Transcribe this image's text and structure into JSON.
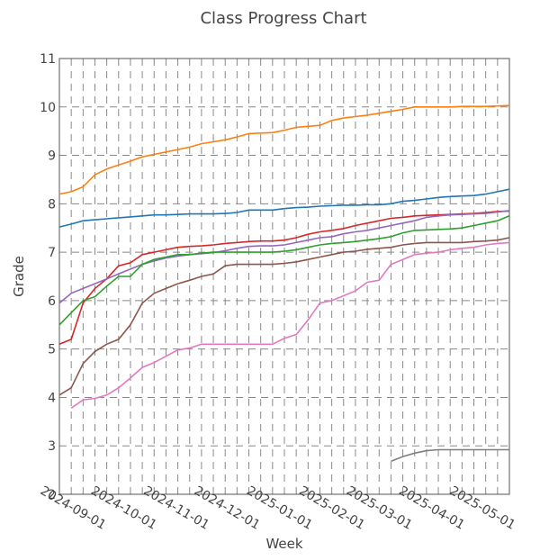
{
  "chart_data": {
    "type": "line",
    "title": "Class Progress Chart",
    "xlabel": "Week",
    "ylabel": "Grade",
    "ylim": [
      2,
      11
    ],
    "y_ticks": [
      2,
      3,
      4,
      5,
      6,
      7,
      8,
      9,
      10,
      11
    ],
    "xlim": [
      "2024-08-25",
      "2025-05-18"
    ],
    "x_ticks": [
      "2024-09-01",
      "2024-10-01",
      "2024-11-01",
      "2024-12-01",
      "2025-01-01",
      "2025-02-01",
      "2025-03-01",
      "2025-04-01",
      "2025-05-01"
    ],
    "grid": true,
    "x": [
      "2024-08-25",
      "2024-09-01",
      "2024-09-08",
      "2024-09-15",
      "2024-09-22",
      "2024-09-29",
      "2024-10-06",
      "2024-10-13",
      "2024-10-20",
      "2024-10-27",
      "2024-11-03",
      "2024-11-10",
      "2024-11-17",
      "2024-11-24",
      "2024-12-01",
      "2024-12-08",
      "2024-12-15",
      "2024-12-22",
      "2024-12-29",
      "2025-01-05",
      "2025-01-12",
      "2025-01-19",
      "2025-01-26",
      "2025-02-02",
      "2025-02-09",
      "2025-02-16",
      "2025-02-23",
      "2025-03-02",
      "2025-03-09",
      "2025-03-16",
      "2025-03-23",
      "2025-03-30",
      "2025-04-06",
      "2025-04-13",
      "2025-04-20",
      "2025-04-27",
      "2025-05-04",
      "2025-05-11",
      "2025-05-18"
    ],
    "series": [
      {
        "color": "#ff7f0e",
        "values": [
          8.2,
          8.25,
          8.35,
          8.6,
          8.72,
          8.8,
          8.88,
          8.97,
          9.02,
          9.07,
          9.12,
          9.17,
          9.24,
          9.28,
          9.32,
          9.38,
          9.45,
          9.46,
          9.47,
          9.52,
          9.58,
          9.6,
          9.62,
          9.72,
          9.77,
          9.8,
          9.83,
          9.87,
          9.91,
          9.95,
          10.0,
          10.0,
          10.0,
          10.0,
          10.01,
          10.01,
          10.01,
          10.02,
          10.03
        ]
      },
      {
        "color": "#1f77b4",
        "values": [
          7.52,
          7.58,
          7.65,
          7.67,
          7.69,
          7.71,
          7.73,
          7.75,
          7.77,
          7.77,
          7.78,
          7.79,
          7.79,
          7.79,
          7.8,
          7.82,
          7.87,
          7.87,
          7.87,
          7.9,
          7.92,
          7.93,
          7.95,
          7.96,
          7.97,
          7.97,
          7.98,
          7.98,
          8.0,
          8.05,
          8.07,
          8.1,
          8.13,
          8.15,
          8.16,
          8.17,
          8.2,
          8.25,
          8.3
        ]
      },
      {
        "color": "#d62728",
        "values": [
          5.1,
          5.2,
          5.95,
          6.25,
          6.45,
          6.72,
          6.78,
          6.95,
          7.0,
          7.05,
          7.1,
          7.12,
          7.13,
          7.15,
          7.18,
          7.2,
          7.22,
          7.23,
          7.23,
          7.25,
          7.3,
          7.37,
          7.42,
          7.45,
          7.49,
          7.55,
          7.6,
          7.65,
          7.7,
          7.72,
          7.75,
          7.76,
          7.77,
          7.78,
          7.79,
          7.8,
          7.82,
          7.84,
          7.85
        ]
      },
      {
        "color": "#9467bd",
        "values": [
          5.95,
          6.15,
          6.25,
          6.35,
          6.45,
          6.55,
          6.65,
          6.75,
          6.82,
          6.88,
          6.92,
          6.95,
          6.97,
          6.99,
          7.03,
          7.08,
          7.12,
          7.13,
          7.13,
          7.15,
          7.2,
          7.25,
          7.3,
          7.32,
          7.38,
          7.42,
          7.45,
          7.5,
          7.55,
          7.6,
          7.65,
          7.72,
          7.75,
          7.77,
          7.78,
          7.79,
          7.8,
          7.83,
          7.86
        ]
      },
      {
        "color": "#2ca02c",
        "values": [
          5.5,
          5.75,
          6.0,
          6.08,
          6.3,
          6.5,
          6.5,
          6.75,
          6.85,
          6.9,
          6.95,
          6.95,
          6.98,
          7.0,
          7.0,
          7.0,
          7.0,
          7.0,
          7.0,
          7.02,
          7.05,
          7.1,
          7.15,
          7.18,
          7.2,
          7.22,
          7.25,
          7.28,
          7.32,
          7.4,
          7.45,
          7.46,
          7.47,
          7.48,
          7.5,
          7.55,
          7.6,
          7.65,
          7.75
        ]
      },
      {
        "color": "#8c564b",
        "values": [
          4.05,
          4.2,
          4.7,
          4.95,
          5.1,
          5.2,
          5.5,
          5.95,
          6.15,
          6.25,
          6.35,
          6.42,
          6.5,
          6.55,
          6.72,
          6.75,
          6.75,
          6.75,
          6.75,
          6.77,
          6.8,
          6.85,
          6.9,
          6.95,
          7.0,
          7.02,
          7.06,
          7.08,
          7.1,
          7.15,
          7.18,
          7.2,
          7.2,
          7.2,
          7.2,
          7.22,
          7.23,
          7.25,
          7.3
        ]
      },
      {
        "color": "#e377c2",
        "values": [
          null,
          3.78,
          3.95,
          3.98,
          4.05,
          4.2,
          4.4,
          4.62,
          4.72,
          4.85,
          4.98,
          5.02,
          5.1,
          5.1,
          5.1,
          5.1,
          5.1,
          5.1,
          5.1,
          5.22,
          5.3,
          5.6,
          5.95,
          6.0,
          6.1,
          6.2,
          6.38,
          6.42,
          6.75,
          6.85,
          6.95,
          6.98,
          7.0,
          7.05,
          7.08,
          7.1,
          7.15,
          7.18,
          7.2
        ]
      },
      {
        "color": "#7f7f7f",
        "values": [
          null,
          null,
          null,
          null,
          null,
          null,
          null,
          null,
          null,
          null,
          null,
          null,
          null,
          null,
          null,
          null,
          null,
          null,
          null,
          null,
          null,
          null,
          null,
          null,
          null,
          null,
          null,
          null,
          2.68,
          2.78,
          2.85,
          2.9,
          2.92,
          2.92,
          2.92,
          2.92,
          2.92,
          2.92,
          2.92
        ]
      }
    ]
  }
}
